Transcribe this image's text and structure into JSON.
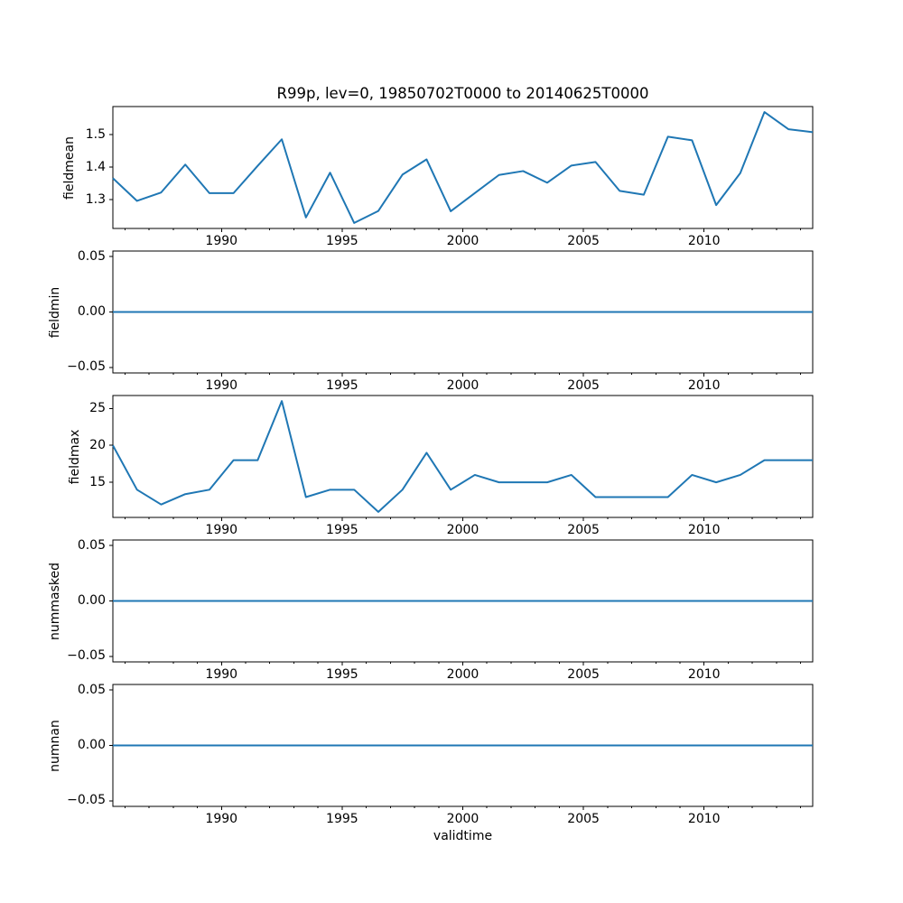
{
  "figure": {
    "background": "#ffffff",
    "text_color": "#000000",
    "spine_color": "#000000"
  },
  "chart_data": {
    "type": "line",
    "title": "R99p, lev=0, 19850702T0000 to 20140625T0000",
    "xlabel": "validtime",
    "line_color": "#1f77b4",
    "grid": false,
    "legend": false,
    "xlim": [
      1985.5,
      2014.5
    ],
    "xticks": [
      1990,
      1995,
      2000,
      2005,
      2010
    ],
    "xtick_labels": [
      "1990",
      "1995",
      "2000",
      "2005",
      "2010"
    ],
    "minor_xtick_years": [
      1986,
      1987,
      1988,
      1989,
      1991,
      1992,
      1993,
      1994,
      1996,
      1997,
      1998,
      1999,
      2001,
      2002,
      2003,
      2004,
      2006,
      2007,
      2008,
      2009,
      2011,
      2012,
      2013,
      2014
    ],
    "x": [
      1985.5,
      1986.5,
      1987.5,
      1988.5,
      1989.5,
      1990.5,
      1991.5,
      1992.5,
      1993.5,
      1994.5,
      1995.5,
      1996.5,
      1997.5,
      1998.5,
      1999.5,
      2000.5,
      2001.5,
      2002.5,
      2003.5,
      2004.5,
      2005.5,
      2006.5,
      2007.5,
      2008.5,
      2009.5,
      2010.5,
      2011.5,
      2012.5,
      2013.5,
      2014.5
    ],
    "subplots": [
      {
        "ylabel": "fieldmean",
        "ylim": [
          1.211,
          1.587
        ],
        "yticks": [
          1.3,
          1.4,
          1.5
        ],
        "ytick_labels": [
          "1.3",
          "1.4",
          "1.5"
        ],
        "values": [
          1.366,
          1.296,
          1.322,
          1.408,
          1.32,
          1.32,
          1.404,
          1.486,
          1.245,
          1.383,
          1.228,
          1.265,
          1.377,
          1.424,
          1.264,
          1.32,
          1.376,
          1.388,
          1.352,
          1.405,
          1.416,
          1.327,
          1.315,
          1.494,
          1.483,
          1.283,
          1.382,
          1.57,
          1.517,
          1.508
        ]
      },
      {
        "ylabel": "fieldmin",
        "ylim": [
          -0.055,
          0.055
        ],
        "yticks": [
          -0.05,
          0.0,
          0.05
        ],
        "ytick_labels": [
          "−0.05",
          "0.00",
          "0.05"
        ],
        "values": [
          0,
          0,
          0,
          0,
          0,
          0,
          0,
          0,
          0,
          0,
          0,
          0,
          0,
          0,
          0,
          0,
          0,
          0,
          0,
          0,
          0,
          0,
          0,
          0,
          0,
          0,
          0,
          0,
          0,
          0
        ]
      },
      {
        "ylabel": "fieldmax",
        "ylim": [
          10.25,
          26.75
        ],
        "yticks": [
          15,
          20,
          25
        ],
        "ytick_labels": [
          "15",
          "20",
          "25"
        ],
        "values": [
          20,
          14,
          12,
          13.4,
          14,
          18,
          18,
          26,
          13,
          14,
          14,
          11,
          14,
          19,
          14,
          16,
          15,
          15,
          15,
          16,
          13,
          13,
          13,
          13,
          16,
          15,
          16,
          18,
          18,
          18
        ]
      },
      {
        "ylabel": "nummasked",
        "ylim": [
          -0.055,
          0.055
        ],
        "yticks": [
          -0.05,
          0.0,
          0.05
        ],
        "ytick_labels": [
          "−0.05",
          "0.00",
          "0.05"
        ],
        "values": [
          0,
          0,
          0,
          0,
          0,
          0,
          0,
          0,
          0,
          0,
          0,
          0,
          0,
          0,
          0,
          0,
          0,
          0,
          0,
          0,
          0,
          0,
          0,
          0,
          0,
          0,
          0,
          0,
          0,
          0
        ]
      },
      {
        "ylabel": "numnan",
        "ylim": [
          -0.055,
          0.055
        ],
        "yticks": [
          -0.05,
          0.0,
          0.05
        ],
        "ytick_labels": [
          "−0.05",
          "0.00",
          "0.05"
        ],
        "values": [
          0,
          0,
          0,
          0,
          0,
          0,
          0,
          0,
          0,
          0,
          0,
          0,
          0,
          0,
          0,
          0,
          0,
          0,
          0,
          0,
          0,
          0,
          0,
          0,
          0,
          0,
          0,
          0,
          0,
          0
        ]
      }
    ]
  }
}
